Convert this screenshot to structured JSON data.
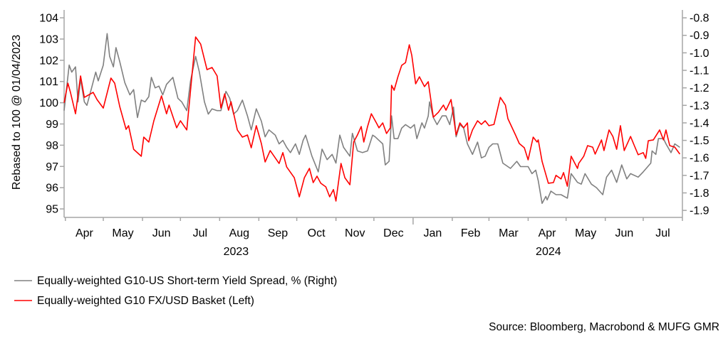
{
  "chart_data": {
    "type": "line",
    "title": "",
    "x_unit": "days since 2023-04-01",
    "xlim": [
      -1,
      488
    ],
    "ylabel_left": "Rebased to 100 @ 01/04/2023",
    "ylim_left": [
      94.6,
      104.37
    ],
    "yticks_left": [
      95,
      96,
      97,
      98,
      99,
      100,
      101,
      102,
      103,
      104
    ],
    "ylim_right": [
      -1.94,
      -0.755
    ],
    "yticks_right": [
      "-0.8",
      "-0.9",
      "-1.0",
      "-1.1",
      "-1.2",
      "-1.3",
      "-1.4",
      "-1.5",
      "-1.6",
      "-1.7",
      "-1.8",
      "-1.9"
    ],
    "month_ticks": [
      0,
      30,
      61,
      91,
      122,
      153,
      183,
      214,
      244,
      275,
      306,
      335,
      366,
      396,
      427,
      457,
      488
    ],
    "month_labels": [
      "Apr",
      "May",
      "Jun",
      "Jul",
      "Aug",
      "Sep",
      "Oct",
      "Nov",
      "Dec",
      "Jan",
      "Feb",
      "Mar",
      "Apr",
      "May",
      "Jun",
      "Jul"
    ],
    "year_labels": [
      {
        "label": "2023",
        "day": 135
      },
      {
        "label": "2024",
        "day": 382
      }
    ],
    "year_boundary_day": 275,
    "legend_position": "bottom-left",
    "series": [
      {
        "name": "Equally-weighted G10-US Short-term Yield Spread, % (Right)",
        "axis": "right",
        "color": "#808080",
        "points": [
          [
            -1,
            -1.33
          ],
          [
            3,
            -1.07
          ],
          [
            5,
            -1.11
          ],
          [
            8,
            -1.08
          ],
          [
            10,
            -1.28
          ],
          [
            12,
            -1.15
          ],
          [
            15,
            -1.28
          ],
          [
            17,
            -1.3
          ],
          [
            20,
            -1.22
          ],
          [
            24,
            -1.11
          ],
          [
            26,
            -1.16
          ],
          [
            30,
            -1.07
          ],
          [
            33,
            -0.89
          ],
          [
            35,
            -1.02
          ],
          [
            38,
            -1.08
          ],
          [
            40,
            -0.97
          ],
          [
            43,
            -1.05
          ],
          [
            47,
            -1.17
          ],
          [
            51,
            -1.24
          ],
          [
            54,
            -1.21
          ],
          [
            57,
            -1.37
          ],
          [
            60,
            -1.27
          ],
          [
            63,
            -1.28
          ],
          [
            66,
            -1.25
          ],
          [
            68,
            -1.14
          ],
          [
            71,
            -1.2
          ],
          [
            74,
            -1.19
          ],
          [
            77,
            -1.24
          ],
          [
            80,
            -1.18
          ],
          [
            85,
            -1.14
          ],
          [
            89,
            -1.26
          ],
          [
            92,
            -1.28
          ],
          [
            96,
            -1.33
          ],
          [
            99,
            -1.16
          ],
          [
            103,
            -1.02
          ],
          [
            106,
            -1.11
          ],
          [
            110,
            -1.28
          ],
          [
            113,
            -1.35
          ],
          [
            116,
            -1.32
          ],
          [
            120,
            -1.33
          ],
          [
            123,
            -1.33
          ],
          [
            127,
            -1.22
          ],
          [
            130,
            -1.26
          ],
          [
            133,
            -1.35
          ],
          [
            136,
            -1.33
          ],
          [
            140,
            -1.27
          ],
          [
            144,
            -1.36
          ],
          [
            147,
            -1.44
          ],
          [
            151,
            -1.32
          ],
          [
            155,
            -1.39
          ],
          [
            158,
            -1.48
          ],
          [
            161,
            -1.44
          ],
          [
            166,
            -1.47
          ],
          [
            169,
            -1.52
          ],
          [
            172,
            -1.5
          ],
          [
            175,
            -1.54
          ],
          [
            178,
            -1.57
          ],
          [
            182,
            -1.52
          ],
          [
            185,
            -1.58
          ],
          [
            188,
            -1.5
          ],
          [
            190,
            -1.47
          ],
          [
            195,
            -1.59
          ],
          [
            200,
            -1.68
          ],
          [
            203,
            -1.55
          ],
          [
            207,
            -1.61
          ],
          [
            211,
            -1.58
          ],
          [
            214,
            -1.63
          ],
          [
            217,
            -1.47
          ],
          [
            220,
            -1.54
          ],
          [
            225,
            -1.59
          ],
          [
            227,
            -1.46
          ],
          [
            231,
            -1.56
          ],
          [
            235,
            -1.57
          ],
          [
            239,
            -1.56
          ],
          [
            243,
            -1.47
          ],
          [
            245,
            -1.48
          ],
          [
            248,
            -1.5
          ],
          [
            251,
            -1.52
          ],
          [
            253,
            -1.64
          ],
          [
            256,
            -1.62
          ],
          [
            258,
            -1.36
          ],
          [
            260,
            -1.49
          ],
          [
            263,
            -1.49
          ],
          [
            266,
            -1.43
          ],
          [
            269,
            -1.41
          ],
          [
            273,
            -1.43
          ],
          [
            276,
            -1.41
          ],
          [
            278,
            -1.49
          ],
          [
            282,
            -1.4
          ],
          [
            284,
            -1.43
          ],
          [
            287,
            -1.36
          ],
          [
            288,
            -1.28
          ],
          [
            291,
            -1.37
          ],
          [
            294,
            -1.41
          ],
          [
            298,
            -1.36
          ],
          [
            301,
            -1.36
          ],
          [
            304,
            -1.41
          ],
          [
            307,
            -1.31
          ],
          [
            309,
            -1.48
          ],
          [
            312,
            -1.41
          ],
          [
            315,
            -1.43
          ],
          [
            318,
            -1.52
          ],
          [
            322,
            -1.58
          ],
          [
            326,
            -1.51
          ],
          [
            329,
            -1.6
          ],
          [
            332,
            -1.59
          ],
          [
            335,
            -1.54
          ],
          [
            338,
            -1.52
          ],
          [
            342,
            -1.52
          ],
          [
            346,
            -1.63
          ],
          [
            352,
            -1.66
          ],
          [
            357,
            -1.62
          ],
          [
            360,
            -1.65
          ],
          [
            366,
            -1.65
          ],
          [
            369,
            -1.69
          ],
          [
            372,
            -1.67
          ],
          [
            374,
            -1.73
          ],
          [
            377,
            -1.86
          ],
          [
            380,
            -1.82
          ],
          [
            381,
            -1.84
          ],
          [
            384,
            -1.79
          ],
          [
            388,
            -1.81
          ],
          [
            392,
            -1.81
          ],
          [
            397,
            -1.83
          ],
          [
            400,
            -1.69
          ],
          [
            405,
            -1.74
          ],
          [
            408,
            -1.75
          ],
          [
            411,
            -1.69
          ],
          [
            416,
            -1.75
          ],
          [
            420,
            -1.77
          ],
          [
            425,
            -1.81
          ],
          [
            428,
            -1.71
          ],
          [
            432,
            -1.67
          ],
          [
            436,
            -1.74
          ],
          [
            440,
            -1.64
          ],
          [
            444,
            -1.72
          ],
          [
            447,
            -1.69
          ],
          [
            453,
            -1.71
          ],
          [
            457,
            -1.68
          ],
          [
            463,
            -1.63
          ],
          [
            464,
            -1.56
          ],
          [
            467,
            -1.58
          ],
          [
            469,
            -1.49
          ],
          [
            473,
            -1.49
          ],
          [
            475,
            -1.52
          ],
          [
            479,
            -1.57
          ],
          [
            482,
            -1.52
          ],
          [
            486,
            -1.54
          ]
        ]
      },
      {
        "name": "Equally-weighted G10 FX/USD Basket (Left)",
        "axis": "left",
        "color": "#ff0000",
        "points": [
          [
            -1,
            100.0
          ],
          [
            2,
            100.92
          ],
          [
            4,
            100.49
          ],
          [
            8,
            99.48
          ],
          [
            12,
            101.26
          ],
          [
            15,
            100.25
          ],
          [
            22,
            100.49
          ],
          [
            25,
            100.15
          ],
          [
            30,
            99.75
          ],
          [
            36,
            101.16
          ],
          [
            39,
            100.92
          ],
          [
            43,
            99.82
          ],
          [
            48,
            98.75
          ],
          [
            50,
            98.92
          ],
          [
            54,
            97.81
          ],
          [
            60,
            97.48
          ],
          [
            62,
            98.38
          ],
          [
            66,
            98.15
          ],
          [
            70,
            99.15
          ],
          [
            76,
            100.32
          ],
          [
            80,
            99.48
          ],
          [
            82,
            99.89
          ],
          [
            88,
            98.82
          ],
          [
            91,
            99.15
          ],
          [
            96,
            98.72
          ],
          [
            103,
            103.1
          ],
          [
            107,
            102.76
          ],
          [
            112,
            101.56
          ],
          [
            116,
            101.66
          ],
          [
            120,
            101.26
          ],
          [
            123,
            99.75
          ],
          [
            126,
            100.42
          ],
          [
            129,
            99.65
          ],
          [
            131,
            100.05
          ],
          [
            136,
            98.72
          ],
          [
            140,
            98.38
          ],
          [
            144,
            98.48
          ],
          [
            147,
            97.88
          ],
          [
            151,
            98.92
          ],
          [
            155,
            98.08
          ],
          [
            158,
            97.21
          ],
          [
            162,
            97.75
          ],
          [
            169,
            97.14
          ],
          [
            172,
            97.65
          ],
          [
            175,
            96.98
          ],
          [
            181,
            96.47
          ],
          [
            185,
            95.57
          ],
          [
            189,
            96.47
          ],
          [
            193,
            96.91
          ],
          [
            196,
            96.24
          ],
          [
            199,
            96.54
          ],
          [
            202,
            96.21
          ],
          [
            206,
            96.04
          ],
          [
            209,
            95.57
          ],
          [
            212,
            95.91
          ],
          [
            214,
            95.37
          ],
          [
            218,
            97.14
          ],
          [
            221,
            96.47
          ],
          [
            225,
            96.14
          ],
          [
            228,
            98.15
          ],
          [
            231,
            98.48
          ],
          [
            234,
            98.88
          ],
          [
            236,
            98.15
          ],
          [
            239,
            98.88
          ],
          [
            242,
            99.48
          ],
          [
            246,
            99.05
          ],
          [
            248,
            98.82
          ],
          [
            251,
            99.05
          ],
          [
            254,
            98.55
          ],
          [
            257,
            98.82
          ],
          [
            258,
            100.82
          ],
          [
            260,
            100.59
          ],
          [
            263,
            101.22
          ],
          [
            266,
            101.76
          ],
          [
            269,
            101.89
          ],
          [
            272,
            102.73
          ],
          [
            274,
            102.23
          ],
          [
            277,
            100.89
          ],
          [
            280,
            101.22
          ],
          [
            284,
            100.76
          ],
          [
            287,
            100.99
          ],
          [
            291,
            99.32
          ],
          [
            295,
            99.55
          ],
          [
            299,
            99.89
          ],
          [
            301,
            99.65
          ],
          [
            305,
            100.15
          ],
          [
            309,
            98.48
          ],
          [
            312,
            99.05
          ],
          [
            315,
            98.82
          ],
          [
            318,
            99.05
          ],
          [
            319,
            98.21
          ],
          [
            322,
            98.72
          ],
          [
            326,
            99.15
          ],
          [
            329,
            98.98
          ],
          [
            332,
            99.15
          ],
          [
            335,
            98.92
          ],
          [
            339,
            98.98
          ],
          [
            344,
            100.25
          ],
          [
            348,
            99.89
          ],
          [
            350,
            99.25
          ],
          [
            356,
            98.48
          ],
          [
            359,
            98.08
          ],
          [
            363,
            97.88
          ],
          [
            366,
            97.31
          ],
          [
            370,
            98.38
          ],
          [
            373,
            98.15
          ],
          [
            374,
            98.25
          ],
          [
            377,
            97.24
          ],
          [
            382,
            96.21
          ],
          [
            386,
            96.24
          ],
          [
            388,
            96.58
          ],
          [
            392,
            96.41
          ],
          [
            394,
            96.71
          ],
          [
            397,
            96.07
          ],
          [
            400,
            97.48
          ],
          [
            405,
            96.91
          ],
          [
            406,
            97.14
          ],
          [
            410,
            97.48
          ],
          [
            413,
            97.98
          ],
          [
            417,
            97.91
          ],
          [
            419,
            97.58
          ],
          [
            424,
            98.25
          ],
          [
            426,
            97.75
          ],
          [
            430,
            98.72
          ],
          [
            433,
            98.41
          ],
          [
            436,
            97.81
          ],
          [
            439,
            98.92
          ],
          [
            442,
            97.75
          ],
          [
            447,
            98.41
          ],
          [
            450,
            97.98
          ],
          [
            453,
            97.55
          ],
          [
            457,
            97.65
          ],
          [
            459,
            97.38
          ],
          [
            461,
            98.21
          ],
          [
            465,
            98.25
          ],
          [
            470,
            98.72
          ],
          [
            473,
            98.25
          ],
          [
            475,
            98.72
          ],
          [
            478,
            97.98
          ],
          [
            482,
            97.91
          ],
          [
            486,
            97.58
          ]
        ]
      }
    ],
    "source": "Source: Bloomberg, Macrobond & MUFG GMR"
  }
}
